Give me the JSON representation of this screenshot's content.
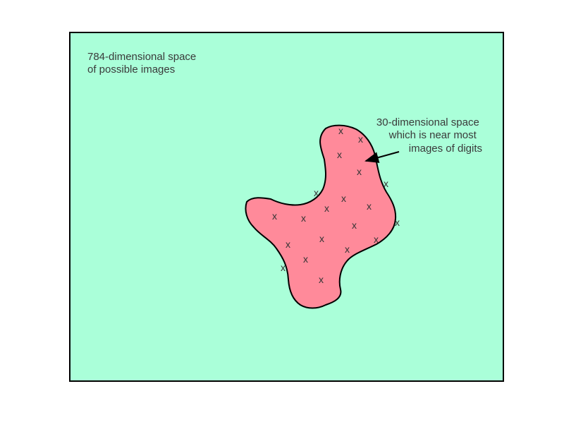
{
  "colors": {
    "background_space": "#aaffd9",
    "manifold_fill": "#ff8a9a",
    "outline": "#000000",
    "text": "#3a3a3a"
  },
  "outer_space": {
    "label_lines": [
      "784-dimensional space",
      "of possible images"
    ]
  },
  "manifold": {
    "label_lines": [
      "30-dimensional space",
      "which is near most",
      "images of digits"
    ],
    "marker_glyph": "x"
  }
}
